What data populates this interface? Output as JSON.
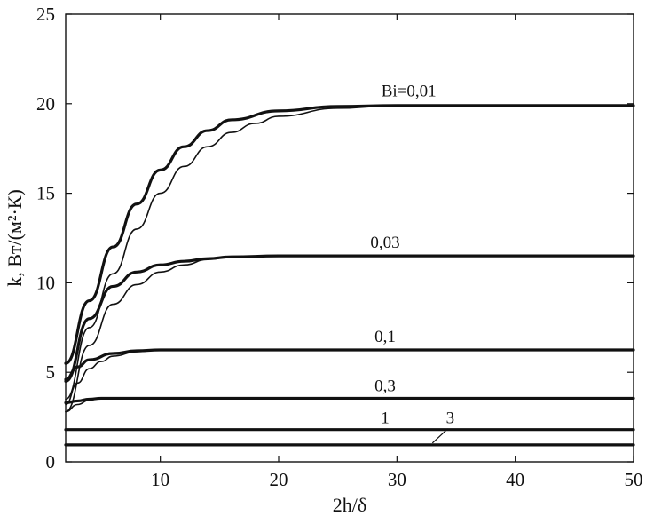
{
  "chart_data": {
    "type": "line",
    "xlabel": "2h/δ",
    "ylabel": "k, Вт/(м²·К)",
    "xlim": [
      2,
      50
    ],
    "ylim": [
      0,
      25
    ],
    "xticks": [
      10,
      20,
      30,
      40,
      50
    ],
    "yticks": [
      0,
      5,
      10,
      15,
      20,
      25
    ],
    "grid": false,
    "series": [
      {
        "name": "Bi=0,01",
        "style": "thick",
        "x": [
          2,
          4,
          6,
          8,
          10,
          12,
          14,
          16,
          20,
          25,
          30,
          40,
          50
        ],
        "y": [
          5.5,
          9.0,
          12.0,
          14.4,
          16.3,
          17.6,
          18.5,
          19.1,
          19.6,
          19.85,
          19.9,
          19.9,
          19.9
        ]
      },
      {
        "name": "",
        "style": "thin",
        "x": [
          2,
          4,
          6,
          8,
          10,
          12,
          14,
          16,
          18,
          20,
          25,
          30,
          40,
          50
        ],
        "y": [
          3.5,
          7.5,
          10.5,
          13.0,
          15.0,
          16.5,
          17.6,
          18.4,
          18.9,
          19.3,
          19.75,
          19.9,
          19.9,
          19.9
        ]
      },
      {
        "name": "0,03",
        "style": "thick",
        "x": [
          2,
          4,
          6,
          8,
          10,
          12,
          14,
          16,
          20,
          30,
          40,
          50
        ],
        "y": [
          4.5,
          8.0,
          9.8,
          10.6,
          11.0,
          11.2,
          11.35,
          11.45,
          11.5,
          11.5,
          11.5,
          11.5
        ]
      },
      {
        "name": "",
        "style": "thin",
        "x": [
          2,
          4,
          6,
          8,
          10,
          12,
          14,
          16,
          20,
          30,
          40,
          50
        ],
        "y": [
          2.8,
          6.5,
          8.8,
          9.9,
          10.6,
          11.0,
          11.3,
          11.45,
          11.5,
          11.5,
          11.5,
          11.5
        ]
      },
      {
        "name": "0,1",
        "style": "thick",
        "x": [
          2,
          3,
          4,
          6,
          8,
          10,
          15,
          20,
          30,
          40,
          50
        ],
        "y": [
          4.6,
          5.3,
          5.7,
          6.05,
          6.2,
          6.25,
          6.25,
          6.25,
          6.25,
          6.25,
          6.25
        ]
      },
      {
        "name": "",
        "style": "thin",
        "x": [
          2,
          3,
          4,
          5,
          6,
          8,
          10,
          15,
          20,
          30,
          40,
          50
        ],
        "y": [
          3.2,
          4.4,
          5.2,
          5.6,
          5.9,
          6.15,
          6.25,
          6.25,
          6.25,
          6.25,
          6.25,
          6.25
        ]
      },
      {
        "name": "0,3",
        "style": "thick",
        "x": [
          2,
          3,
          4,
          5,
          6,
          8,
          10,
          20,
          30,
          40,
          50
        ],
        "y": [
          3.3,
          3.4,
          3.5,
          3.55,
          3.55,
          3.55,
          3.55,
          3.55,
          3.55,
          3.55,
          3.55
        ]
      },
      {
        "name": "",
        "style": "thin",
        "x": [
          2,
          3,
          4,
          5,
          6,
          8,
          10,
          20,
          30,
          40,
          50
        ],
        "y": [
          2.8,
          3.2,
          3.45,
          3.55,
          3.55,
          3.55,
          3.55,
          3.55,
          3.55,
          3.55,
          3.55
        ]
      },
      {
        "name": "1",
        "style": "thick",
        "x": [
          2,
          50
        ],
        "y": [
          1.8,
          1.8
        ]
      },
      {
        "name": "3",
        "style": "thick",
        "x": [
          2,
          50
        ],
        "y": [
          0.95,
          0.95
        ]
      }
    ],
    "annotations": [
      {
        "text": "Bi=0,01",
        "x": 31,
        "y": 20.4
      },
      {
        "text": "0,03",
        "x": 29,
        "y": 11.95
      },
      {
        "text": "0,1",
        "x": 29,
        "y": 6.7
      },
      {
        "text": "0,3",
        "x": 29,
        "y": 3.95
      },
      {
        "text": "1",
        "x": 29,
        "y": 2.15
      },
      {
        "text": "3",
        "x": 34.5,
        "y": 2.15
      }
    ],
    "leader": {
      "from": [
        34.3,
        1.85
      ],
      "to": [
        33,
        1.05
      ]
    }
  }
}
